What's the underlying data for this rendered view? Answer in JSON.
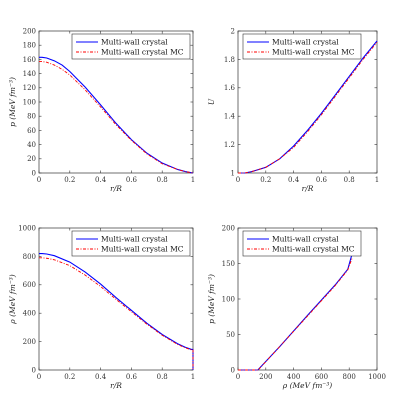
{
  "chart_data": [
    {
      "type": "line",
      "xlabel": "r/R",
      "ylabel": "p (MeV fm⁻³)",
      "xlim": [
        0,
        1
      ],
      "ylim": [
        0,
        200
      ],
      "xticks": [
        0,
        0.2,
        0.4,
        0.6,
        0.8,
        1
      ],
      "yticks": [
        0,
        20,
        40,
        60,
        80,
        100,
        120,
        140,
        160,
        180,
        200
      ],
      "xtick_labels": [
        "0",
        "0.2",
        "0.4",
        "0.6",
        "0.8",
        "1"
      ],
      "ytick_labels": [
        "0",
        "20",
        "40",
        "60",
        "80",
        "100",
        "120",
        "140",
        "160",
        "180",
        "200"
      ],
      "grid": false,
      "legend_position": "top-right",
      "x": [
        0,
        0.02,
        0.05,
        0.1,
        0.15,
        0.2,
        0.3,
        0.4,
        0.5,
        0.6,
        0.7,
        0.8,
        0.9,
        0.95,
        1.0
      ],
      "series": [
        {
          "name": "Multi-wall crystal",
          "color": "#0000ff",
          "style": "solid",
          "values": [
            163,
            163,
            162,
            158,
            152,
            143,
            121,
            96,
            70,
            47,
            28,
            14,
            5,
            2,
            0
          ]
        },
        {
          "name": "Multi-wall crystal MC",
          "color": "#ff0000",
          "style": "dashdot",
          "values": [
            157,
            157,
            156,
            152,
            146,
            138,
            117,
            93,
            68,
            46,
            27,
            13,
            5,
            2,
            0
          ]
        }
      ]
    },
    {
      "type": "line",
      "xlabel": "r/R",
      "ylabel": "U",
      "xlim": [
        0,
        1
      ],
      "ylim": [
        1,
        2
      ],
      "xticks": [
        0,
        0.2,
        0.4,
        0.6,
        0.8,
        1
      ],
      "yticks": [
        1,
        1.2,
        1.4,
        1.6,
        1.8,
        2
      ],
      "xtick_labels": [
        "0",
        "0.2",
        "0.4",
        "0.6",
        "0.8",
        "1"
      ],
      "ytick_labels": [
        "1",
        "1.2",
        "1.4",
        "1.6",
        "1.8",
        "2"
      ],
      "grid": false,
      "legend_position": "top-left",
      "x": [
        0,
        0.05,
        0.1,
        0.2,
        0.3,
        0.4,
        0.5,
        0.6,
        0.7,
        0.8,
        0.9,
        0.95,
        1.0
      ],
      "series": [
        {
          "name": "Multi-wall crystal",
          "color": "#0000ff",
          "style": "solid",
          "values": [
            1.0,
            1.0,
            1.01,
            1.04,
            1.1,
            1.19,
            1.3,
            1.42,
            1.55,
            1.68,
            1.81,
            1.87,
            1.93
          ]
        },
        {
          "name": "Multi-wall crystal MC",
          "color": "#ff0000",
          "style": "dashdot",
          "values": [
            1.0,
            1.0,
            1.01,
            1.04,
            1.1,
            1.18,
            1.29,
            1.41,
            1.54,
            1.67,
            1.8,
            1.86,
            1.92
          ]
        }
      ]
    },
    {
      "type": "line",
      "xlabel": "r/R",
      "ylabel": "ρ (MeV fm⁻³)",
      "xlim": [
        0,
        1
      ],
      "ylim": [
        0,
        1000
      ],
      "xticks": [
        0,
        0.2,
        0.4,
        0.6,
        0.8,
        1
      ],
      "yticks": [
        0,
        200,
        400,
        600,
        800,
        1000
      ],
      "xtick_labels": [
        "0",
        "0.2",
        "0.4",
        "0.6",
        "0.8",
        "1"
      ],
      "ytick_labels": [
        "0",
        "200",
        "400",
        "600",
        "800",
        "1000"
      ],
      "grid": false,
      "legend_position": "top-right",
      "x": [
        0,
        0.02,
        0.05,
        0.1,
        0.2,
        0.3,
        0.4,
        0.5,
        0.6,
        0.7,
        0.8,
        0.9,
        0.95,
        0.99,
        1.0,
        1.0
      ],
      "series": [
        {
          "name": "Multi-wall crystal",
          "color": "#0000ff",
          "style": "solid",
          "values": [
            820,
            820,
            817,
            805,
            760,
            690,
            605,
            510,
            420,
            330,
            250,
            185,
            160,
            145,
            145,
            0
          ]
        },
        {
          "name": "Multi-wall crystal MC",
          "color": "#ff0000",
          "style": "dashdot",
          "values": [
            790,
            790,
            787,
            776,
            735,
            668,
            588,
            498,
            410,
            323,
            245,
            180,
            156,
            142,
            142,
            0
          ]
        }
      ]
    },
    {
      "type": "line",
      "xlabel": "ρ (MeV fm⁻³)",
      "ylabel": "p (MeV fm⁻³)",
      "xlim": [
        0,
        1000
      ],
      "ylim": [
        0,
        200
      ],
      "xticks": [
        0,
        200,
        400,
        600,
        800,
        1000
      ],
      "yticks": [
        0,
        50,
        100,
        150,
        200
      ],
      "xtick_labels": [
        "0",
        "200",
        "400",
        "600",
        "800",
        "1000"
      ],
      "ytick_labels": [
        "0",
        "50",
        "100",
        "150",
        "200"
      ],
      "grid": false,
      "legend_position": "top-left",
      "x": [
        0,
        142,
        145,
        300,
        500,
        700,
        790,
        820
      ],
      "series": [
        {
          "name": "Multi-wall crystal",
          "color": "#0000ff",
          "style": "solid",
          "values": [
            0,
            0,
            0.5,
            33,
            77,
            120,
            142,
            163
          ]
        },
        {
          "name": "Multi-wall crystal MC",
          "color": "#ff0000",
          "style": "dashdot",
          "values": [
            0,
            0,
            0,
            33,
            76,
            119,
            141,
            157
          ]
        }
      ]
    }
  ]
}
